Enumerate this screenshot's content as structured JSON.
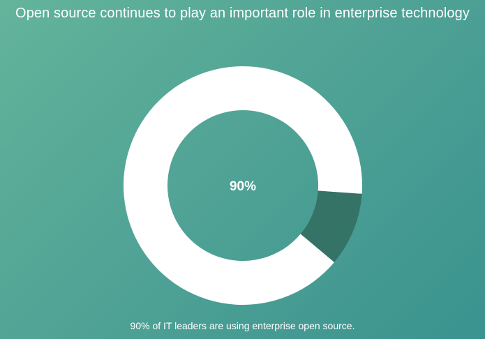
{
  "title": "Open source continues to play an important role in enterprise technology",
  "caption": "90% of IT leaders are using enterprise open source.",
  "chart_data": {
    "type": "pie",
    "variant": "donut",
    "center_label": "90%",
    "slices": [
      {
        "value": 90,
        "color": "#ffffff"
      },
      {
        "value": 10,
        "color": "#357367"
      }
    ],
    "start_angle_deg": 94
  }
}
